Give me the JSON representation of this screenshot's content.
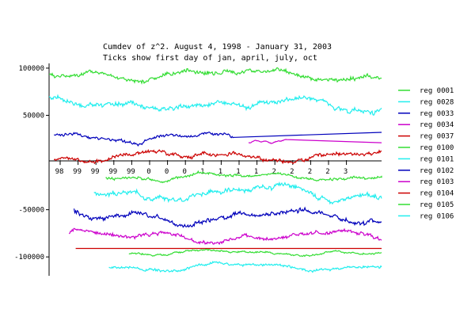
{
  "chart_data": {
    "type": "line",
    "title": "Cumdev of z^2.  August 4, 1998 - January 31, 2003",
    "subtitle": "Ticks show first day of jan, april, july, oct",
    "ylim": [
      -120000,
      105000
    ],
    "y_ticks": [
      {
        "value": 100000,
        "label": "100000"
      },
      {
        "value": 50000,
        "label": "50000"
      },
      {
        "value": -50000,
        "label": "-50000"
      },
      {
        "value": -100000,
        "label": "-100000"
      }
    ],
    "x_tick_labels": [
      "98",
      "99",
      "99",
      "99",
      "99",
      "0",
      "0",
      "0",
      "1",
      "1",
      "1",
      "1",
      "2",
      "2",
      "2",
      "2",
      "3"
    ],
    "grid": false,
    "legend_position": "right",
    "series": [
      {
        "name": "reg 0001",
        "color": "#33dd33",
        "start": 0.0,
        "end": 1.0,
        "base": 92000,
        "amp": 8000,
        "seed": 1
      },
      {
        "name": "reg 0028",
        "color": "#22eeee",
        "start": 0.0,
        "end": 1.0,
        "base": 62000,
        "amp": 9000,
        "seed": 2
      },
      {
        "name": "reg 0033",
        "color": "#0000bb",
        "start": 0.015,
        "end": 0.56,
        "base": 26000,
        "amp": 6000,
        "seed": 3,
        "flat_to": 1.0,
        "flat_value": 32000
      },
      {
        "name": "reg 0034",
        "color": "#cc00cc",
        "start": 0.6,
        "end": 0.715,
        "base": 22000,
        "amp": 2000,
        "seed": 4,
        "flat_to": 1.0,
        "flat_value": 21000
      },
      {
        "name": "reg 0037",
        "color": "#cc0000",
        "start": 0.015,
        "end": 1.0,
        "base": 6000,
        "amp": 7000,
        "seed": 5
      },
      {
        "name": "reg 0100",
        "color": "#33dd33",
        "start": 0.17,
        "end": 1.0,
        "base": -15000,
        "amp": 5000,
        "seed": 6,
        "flat_to": 1.0,
        "flat_value": -14000
      },
      {
        "name": "reg 0101",
        "color": "#22eeee",
        "start": 0.135,
        "end": 1.0,
        "base": -33000,
        "amp": 9000,
        "seed": 7
      },
      {
        "name": "reg 0102",
        "color": "#0000bb",
        "start": 0.075,
        "end": 1.0,
        "base": -57000,
        "amp": 9000,
        "seed": 8
      },
      {
        "name": "reg 0103",
        "color": "#cc00cc",
        "start": 0.06,
        "end": 1.0,
        "base": -78000,
        "amp": 7000,
        "seed": 9
      },
      {
        "name": "reg 0104",
        "color": "#cc0000",
        "start": 0.08,
        "end": 1.0,
        "base": -91000,
        "amp": 0,
        "seed": 10
      },
      {
        "name": "reg 0105",
        "color": "#33dd33",
        "start": 0.24,
        "end": 1.0,
        "base": -96000,
        "amp": 3500,
        "seed": 11
      },
      {
        "name": "reg 0106",
        "color": "#22eeee",
        "start": 0.18,
        "end": 1.0,
        "base": -110000,
        "amp": 5000,
        "seed": 12
      }
    ]
  }
}
